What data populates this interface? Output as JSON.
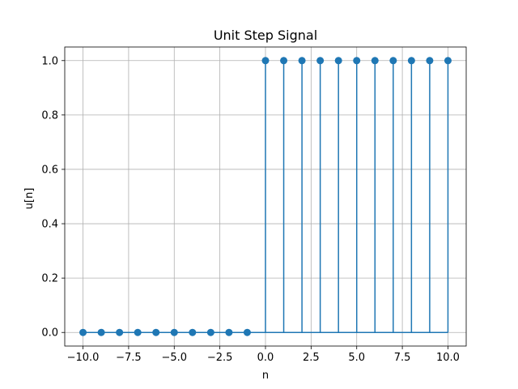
{
  "chart_data": {
    "type": "stem",
    "title": "Unit Step Signal",
    "xlabel": "n",
    "ylabel": "u[n]",
    "xlim": [
      -11,
      11
    ],
    "ylim": [
      -0.05,
      1.05
    ],
    "x_ticks": [
      -10,
      -7.5,
      -5,
      -2.5,
      0,
      2.5,
      5,
      7.5,
      10
    ],
    "x_tick_labels": [
      "−10.0",
      "−7.5",
      "−5.0",
      "−2.5",
      "0.0",
      "2.5",
      "5.0",
      "7.5",
      "10.0"
    ],
    "y_ticks": [
      0,
      0.2,
      0.4,
      0.6,
      0.8,
      1.0
    ],
    "y_tick_labels": [
      "0.0",
      "0.2",
      "0.4",
      "0.6",
      "0.8",
      "1.0"
    ],
    "grid": true,
    "color": "#1f77b4",
    "x": [
      -10,
      -9,
      -8,
      -7,
      -6,
      -5,
      -4,
      -3,
      -2,
      -1,
      0,
      1,
      2,
      3,
      4,
      5,
      6,
      7,
      8,
      9,
      10
    ],
    "y": [
      0,
      0,
      0,
      0,
      0,
      0,
      0,
      0,
      0,
      0,
      1,
      1,
      1,
      1,
      1,
      1,
      1,
      1,
      1,
      1,
      1
    ]
  }
}
